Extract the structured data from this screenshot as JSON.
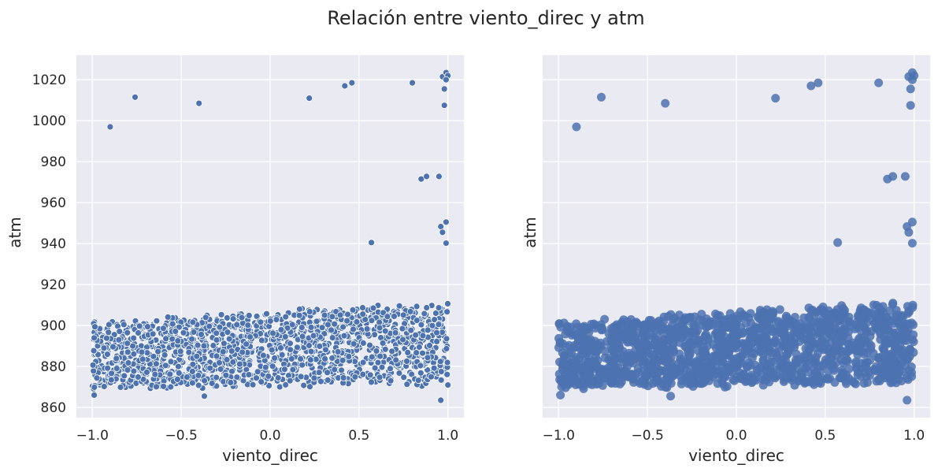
{
  "figure": {
    "title": "Relación entre viento_direc y atm",
    "point_color": "#4c72b0",
    "panel_background": "#eaeaf2"
  },
  "chart_data": [
    {
      "type": "scatter",
      "xlabel": "viento_direc",
      "ylabel": "atm",
      "xlim": [
        -1.09,
        1.09
      ],
      "ylim": [
        855,
        1032
      ],
      "xticks": [
        -1.0,
        -0.5,
        0.0,
        0.5,
        1.0
      ],
      "xtick_labels": [
        "−1.0",
        "−0.5",
        "0.0",
        "0.5",
        "1.0"
      ],
      "yticks": [
        860,
        880,
        900,
        920,
        940,
        960,
        980,
        1000,
        1020
      ],
      "ytick_labels": [
        "860",
        "880",
        "900",
        "920",
        "940",
        "960",
        "980",
        "1000",
        "1020"
      ],
      "grid": true,
      "marker": "edged",
      "dense_cloud": {
        "x_range": [
          -1.0,
          1.0
        ],
        "y_low": [
          870,
          875
        ],
        "y_high": [
          901,
          911
        ],
        "count": 1600
      },
      "outliers": [
        [
          -0.9,
          997
        ],
        [
          -0.76,
          1011.5
        ],
        [
          -0.4,
          1008.5
        ],
        [
          0.22,
          1011
        ],
        [
          0.42,
          1017
        ],
        [
          0.46,
          1018.5
        ],
        [
          0.8,
          1018.5
        ],
        [
          0.97,
          1021.5
        ],
        [
          0.99,
          1023.5
        ],
        [
          1.0,
          1022
        ],
        [
          0.99,
          1020
        ],
        [
          0.98,
          1015.5
        ],
        [
          0.98,
          1007.5
        ],
        [
          0.85,
          971.5
        ],
        [
          0.88,
          972.8
        ],
        [
          0.95,
          972.8
        ],
        [
          0.99,
          950.5
        ],
        [
          0.96,
          948.3
        ],
        [
          0.97,
          945.5
        ],
        [
          0.99,
          940.2
        ],
        [
          0.57,
          940.5
        ],
        [
          0.96,
          863.5
        ],
        [
          -0.37,
          865.5
        ],
        [
          -0.99,
          866
        ]
      ]
    },
    {
      "type": "scatter",
      "xlabel": "viento_direc",
      "ylabel": "atm",
      "xlim": [
        -1.09,
        1.09
      ],
      "ylim": [
        855,
        1032
      ],
      "xticks": [
        -1.0,
        -0.5,
        0.0,
        0.5,
        1.0
      ],
      "xtick_labels": [
        "−1.0",
        "−0.5",
        "0.0",
        "0.5",
        "1.0"
      ],
      "yticks": [
        860,
        880,
        900,
        920,
        940,
        960,
        980,
        1000,
        1020
      ],
      "ytick_labels": [],
      "grid": true,
      "marker": "filled",
      "dense_cloud": {
        "x_range": [
          -1.0,
          1.0
        ],
        "y_low": [
          870,
          875
        ],
        "y_high": [
          901,
          911
        ],
        "count": 1600
      },
      "outliers": [
        [
          -0.9,
          997
        ],
        [
          -0.76,
          1011.5
        ],
        [
          -0.4,
          1008.5
        ],
        [
          0.22,
          1011
        ],
        [
          0.42,
          1017
        ],
        [
          0.46,
          1018.5
        ],
        [
          0.8,
          1018.5
        ],
        [
          0.97,
          1021.5
        ],
        [
          0.99,
          1023.5
        ],
        [
          1.0,
          1022
        ],
        [
          0.99,
          1020
        ],
        [
          0.98,
          1015.5
        ],
        [
          0.98,
          1007.5
        ],
        [
          0.85,
          971.5
        ],
        [
          0.88,
          972.8
        ],
        [
          0.95,
          972.8
        ],
        [
          0.99,
          950.5
        ],
        [
          0.96,
          948.3
        ],
        [
          0.97,
          945.5
        ],
        [
          0.99,
          940.2
        ],
        [
          0.57,
          940.5
        ],
        [
          0.96,
          863.5
        ],
        [
          -0.37,
          865.5
        ],
        [
          -0.99,
          866
        ]
      ]
    }
  ]
}
